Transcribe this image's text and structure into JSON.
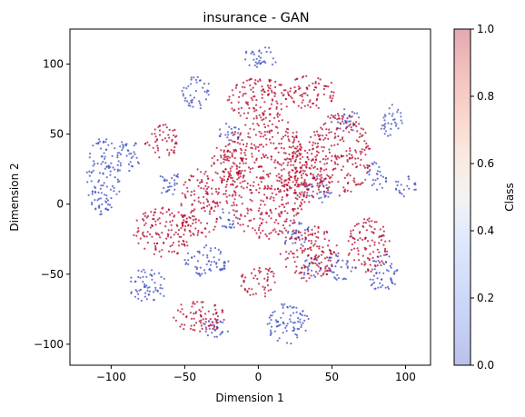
{
  "chart_data": {
    "type": "scatter",
    "title": "insurance - GAN",
    "xlabel": "Dimension 1",
    "ylabel": "Dimension 2",
    "xlim": [
      -128,
      117
    ],
    "ylim": [
      -115,
      125
    ],
    "x_ticks": [
      -100,
      -50,
      0,
      50,
      100
    ],
    "y_ticks": [
      -100,
      -50,
      0,
      50,
      100
    ],
    "colorbar": {
      "label": "Class",
      "range": [
        0,
        1
      ],
      "ticks": [
        "0.0",
        "0.2",
        "0.4",
        "0.6",
        "0.8",
        "1.0"
      ],
      "colormap": "coolwarm",
      "alpha": 0.35
    },
    "series": [
      {
        "value": 0,
        "color": "#3b4cc0",
        "clusters": [
          {
            "cx": 2,
            "cy": 105,
            "rx": 12,
            "ry": 8
          },
          {
            "cx": -42,
            "cy": 80,
            "rx": 10,
            "ry": 12
          },
          {
            "cx": -105,
            "cy": 20,
            "rx": 12,
            "ry": 28
          },
          {
            "cx": -88,
            "cy": 35,
            "rx": 8,
            "ry": 12
          },
          {
            "cx": -75,
            "cy": -58,
            "rx": 14,
            "ry": 12
          },
          {
            "cx": -35,
            "cy": -40,
            "rx": 15,
            "ry": 12
          },
          {
            "cx": 20,
            "cy": -85,
            "rx": 15,
            "ry": 15
          },
          {
            "cx": 90,
            "cy": 60,
            "rx": 8,
            "ry": 12
          },
          {
            "cx": 100,
            "cy": 12,
            "rx": 8,
            "ry": 8
          },
          {
            "cx": 85,
            "cy": -50,
            "rx": 10,
            "ry": 15
          },
          {
            "cx": 40,
            "cy": 10,
            "rx": 10,
            "ry": 10
          },
          {
            "cx": -20,
            "cy": 50,
            "rx": 8,
            "ry": 8
          },
          {
            "cx": 25,
            "cy": -20,
            "rx": 10,
            "ry": 10
          },
          {
            "cx": 80,
            "cy": 20,
            "rx": 8,
            "ry": 10
          },
          {
            "cx": -60,
            "cy": 15,
            "rx": 8,
            "ry": 10
          },
          {
            "cx": -20,
            "cy": -10,
            "rx": 8,
            "ry": 8
          },
          {
            "cx": 55,
            "cy": -45,
            "rx": 10,
            "ry": 10
          },
          {
            "cx": -30,
            "cy": -90,
            "rx": 10,
            "ry": 8
          },
          {
            "cx": 60,
            "cy": 60,
            "rx": 10,
            "ry": 8
          },
          {
            "cx": 35,
            "cy": -45,
            "rx": 8,
            "ry": 8
          }
        ]
      },
      {
        "value": 1,
        "color": "#b40426",
        "clusters": [
          {
            "cx": 5,
            "cy": 20,
            "rx": 30,
            "ry": 45
          },
          {
            "cx": 55,
            "cy": 35,
            "rx": 22,
            "ry": 30
          },
          {
            "cx": 0,
            "cy": 75,
            "rx": 22,
            "ry": 15
          },
          {
            "cx": 35,
            "cy": 80,
            "rx": 18,
            "ry": 12
          },
          {
            "cx": -65,
            "cy": 45,
            "rx": 12,
            "ry": 12
          },
          {
            "cx": -65,
            "cy": -20,
            "rx": 20,
            "ry": 18
          },
          {
            "cx": -40,
            "cy": 0,
            "rx": 15,
            "ry": 25
          },
          {
            "cx": 35,
            "cy": -35,
            "rx": 20,
            "ry": 20
          },
          {
            "cx": 75,
            "cy": -30,
            "rx": 15,
            "ry": 20
          },
          {
            "cx": -40,
            "cy": -80,
            "rx": 18,
            "ry": 12
          },
          {
            "cx": 0,
            "cy": -55,
            "rx": 12,
            "ry": 12
          },
          {
            "cx": 30,
            "cy": 20,
            "rx": 15,
            "ry": 20
          },
          {
            "cx": -20,
            "cy": 30,
            "rx": 12,
            "ry": 15
          }
        ]
      }
    ]
  }
}
